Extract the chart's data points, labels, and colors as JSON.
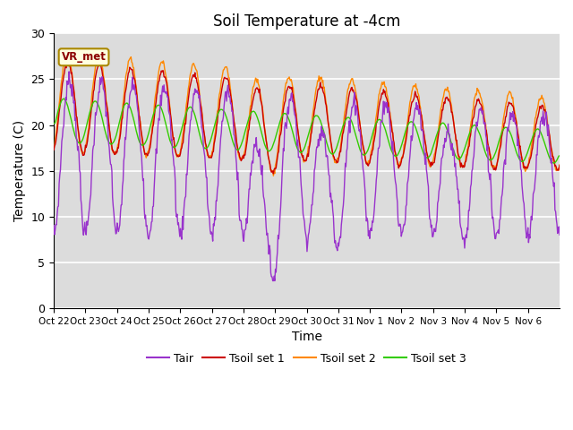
{
  "title": "Soil Temperature at -4cm",
  "xlabel": "Time",
  "ylabel": "Temperature (C)",
  "ylim": [
    0,
    30
  ],
  "yticks": [
    0,
    5,
    10,
    15,
    20,
    25,
    30
  ],
  "xtick_labels": [
    "Oct 22",
    "Oct 23",
    "Oct 24",
    "Oct 25",
    "Oct 26",
    "Oct 27",
    "Oct 28",
    "Oct 29",
    "Oct 30",
    "Oct 31",
    "Nov 1",
    "Nov 2",
    "Nov 3",
    "Nov 4",
    "Nov 5",
    "Nov 6"
  ],
  "annotation": "VR_met",
  "colors": {
    "Tair": "#9933CC",
    "Tsoil1": "#CC0000",
    "Tsoil2": "#FF8800",
    "Tsoil3": "#33CC00"
  },
  "legend_labels": [
    "Tair",
    "Tsoil set 1",
    "Tsoil set 2",
    "Tsoil set 3"
  ],
  "bg_color": "#DCDCDC",
  "title_fontsize": 12,
  "axis_fontsize": 10,
  "tick_fontsize": 9
}
